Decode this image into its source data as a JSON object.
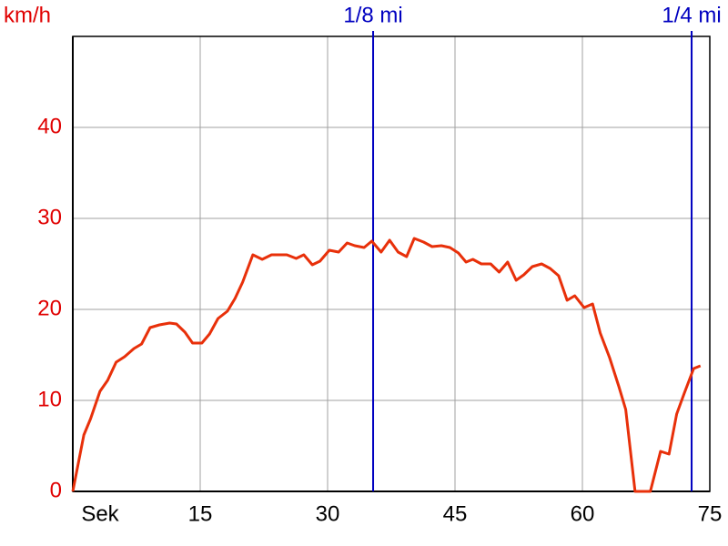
{
  "chart_data": {
    "type": "line",
    "y_label": "km/h",
    "x": [
      0,
      1.3,
      2.1,
      3.2,
      4.1,
      5.1,
      6.1,
      7.2,
      8.1,
      9.1,
      10.2,
      11.4,
      12.2,
      13.2,
      14.1,
      15.2,
      16.1,
      17.1,
      18.2,
      19.1,
      20,
      21.2,
      22.3,
      23.4,
      25.2,
      26.3,
      27.2,
      28.2,
      29.1,
      30.2,
      31.3,
      32.3,
      33.2,
      34.3,
      35.2,
      36.3,
      37.3,
      38.3,
      39.3,
      40.2,
      41.3,
      42.3,
      43.4,
      44.4,
      45.4,
      46.3,
      47.1,
      48.1,
      49.2,
      50.2,
      51.2,
      52.2,
      53.1,
      54.1,
      55.2,
      56.2,
      57.2,
      58.2,
      59.1,
      60.2,
      61.2,
      62.1,
      63.2,
      64.3,
      65.1,
      66.2,
      68,
      69.2,
      70.2,
      71.1,
      72,
      73.1,
      73.9
    ],
    "values": [
      0,
      6.2,
      8,
      11,
      12.2,
      14.2,
      14.8,
      15.7,
      16.2,
      18,
      18.3,
      18.5,
      18.4,
      17.5,
      16.3,
      16.3,
      17.3,
      19,
      19.8,
      21.2,
      23,
      26,
      25.5,
      26,
      26,
      25.6,
      26,
      24.9,
      25.3,
      26.5,
      26.3,
      27.3,
      27,
      26.8,
      27.5,
      26.3,
      27.6,
      26.3,
      25.8,
      27.8,
      27.4,
      26.9,
      27,
      26.8,
      26.2,
      25.2,
      25.5,
      25,
      25,
      24.1,
      25.2,
      23.2,
      23.8,
      24.7,
      25,
      24.5,
      23.7,
      21,
      21.5,
      20.2,
      20.6,
      17.4,
      14.7,
      11.5,
      9,
      0,
      0,
      4.4,
      4.1,
      8.5,
      10.8,
      13.5,
      13.8
    ],
    "color": "#e8300a",
    "xlim": [
      0,
      75
    ],
    "xticks": [
      {
        "value": 0,
        "label": "Sek"
      },
      15,
      30,
      45,
      60,
      75
    ],
    "ylim": [
      0,
      50
    ],
    "yticks": [
      0,
      10,
      20,
      30,
      40
    ],
    "grid": true,
    "markers": [
      {
        "label": "1/8 mi",
        "x": 35.36
      },
      {
        "label": "1/4 mi",
        "x": 72.86
      }
    ],
    "marker_color": "#0000c0"
  }
}
